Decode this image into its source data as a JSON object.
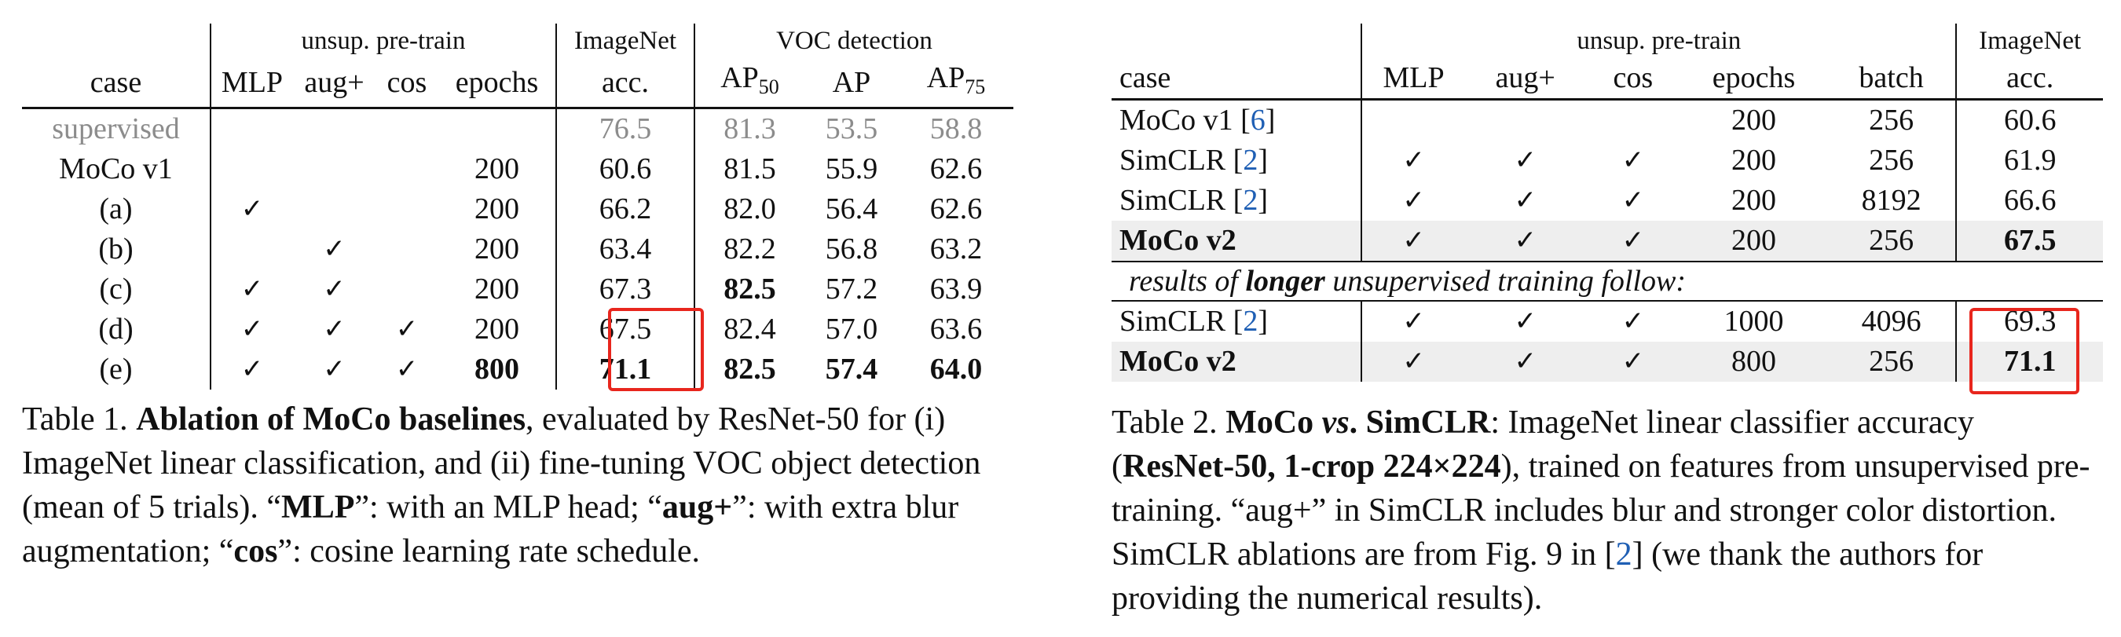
{
  "table1": {
    "header": {
      "group_pretrain": "unsup. pre-train",
      "group_imagenet": "ImageNet",
      "group_voc": "VOC detection",
      "case": "case",
      "mlp": "MLP",
      "aug": "aug+",
      "cos": "cos",
      "epochs": "epochs",
      "acc": "acc.",
      "ap50_main": "AP",
      "ap50_sub": "50",
      "ap": "AP",
      "ap75_main": "AP",
      "ap75_sub": "75"
    },
    "rows": [
      {
        "case": "supervised",
        "mlp": "",
        "aug": "",
        "cos": "",
        "epochs": "",
        "acc": "76.5",
        "ap50": "81.3",
        "ap": "53.5",
        "ap75": "58.8"
      },
      {
        "case": "MoCo v1",
        "mlp": "",
        "aug": "",
        "cos": "",
        "epochs": "200",
        "acc": "60.6",
        "ap50": "81.5",
        "ap": "55.9",
        "ap75": "62.6"
      },
      {
        "case": "(a)",
        "mlp": "✓",
        "aug": "",
        "cos": "",
        "epochs": "200",
        "acc": "66.2",
        "ap50": "82.0",
        "ap": "56.4",
        "ap75": "62.6"
      },
      {
        "case": "(b)",
        "mlp": "",
        "aug": "✓",
        "cos": "",
        "epochs": "200",
        "acc": "63.4",
        "ap50": "82.2",
        "ap": "56.8",
        "ap75": "63.2"
      },
      {
        "case": "(c)",
        "mlp": "✓",
        "aug": "✓",
        "cos": "",
        "epochs": "200",
        "acc": "67.3",
        "ap50": "82.5",
        "ap": "57.2",
        "ap75": "63.9"
      },
      {
        "case": "(d)",
        "mlp": "✓",
        "aug": "✓",
        "cos": "✓",
        "epochs": "200",
        "acc": "67.5",
        "ap50": "82.4",
        "ap": "57.0",
        "ap75": "63.6"
      },
      {
        "case": "(e)",
        "mlp": "✓",
        "aug": "✓",
        "cos": "✓",
        "epochs": "800",
        "acc": "71.1",
        "ap50": "82.5",
        "ap": "57.4",
        "ap75": "64.0"
      }
    ],
    "caption": {
      "label": "Table 1.",
      "title": "Ablation of MoCo baselines",
      "t1": ", evaluated by ResNet-50 for (i) ImageNet linear classification, and (ii) fine-tuning VOC object detection (mean of 5 trials). “",
      "k1": "MLP",
      "t2": "”: with an MLP head; “",
      "k2": "aug+",
      "t3": "”: with extra blur augmentation; “",
      "k3": "cos",
      "t4": "”: cosine learning rate schedule."
    }
  },
  "table2": {
    "header": {
      "group_pretrain": "unsup. pre-train",
      "group_imagenet": "ImageNet",
      "case": "case",
      "mlp": "MLP",
      "aug": "aug+",
      "cos": "cos",
      "epochs": "epochs",
      "batch": "batch",
      "acc": "acc."
    },
    "rows": [
      {
        "name": "MoCo v1",
        "ref": "6",
        "mlp": "",
        "aug": "",
        "cos": "",
        "epochs": "200",
        "batch": "256",
        "acc": "60.6"
      },
      {
        "name": "SimCLR",
        "ref": "2",
        "mlp": "✓",
        "aug": "✓",
        "cos": "✓",
        "epochs": "200",
        "batch": "256",
        "acc": "61.9"
      },
      {
        "name": "SimCLR",
        "ref": "2",
        "mlp": "✓",
        "aug": "✓",
        "cos": "✓",
        "epochs": "200",
        "batch": "8192",
        "acc": "66.6"
      },
      {
        "name": "MoCo v2",
        "ref": "",
        "mlp": "✓",
        "aug": "✓",
        "cos": "✓",
        "epochs": "200",
        "batch": "256",
        "acc": "67.5"
      }
    ],
    "note": {
      "pre": "results of ",
      "bold": "longer",
      "post": " unsupervised training follow:"
    },
    "rows_long": [
      {
        "name": "SimCLR",
        "ref": "2",
        "mlp": "✓",
        "aug": "✓",
        "cos": "✓",
        "epochs": "1000",
        "batch": "4096",
        "acc": "69.3"
      },
      {
        "name": "MoCo v2",
        "ref": "",
        "mlp": "✓",
        "aug": "✓",
        "cos": "✓",
        "epochs": "800",
        "batch": "256",
        "acc": "71.1"
      }
    ],
    "caption": {
      "label": "Table 2.",
      "title_a": "MoCo ",
      "title_vs": "vs",
      "title_b": ". SimCLR",
      "t1": ": ImageNet linear classifier accuracy (",
      "b1": "ResNet-50, 1-crop 224×224",
      "t2": "), trained on features from unsupervised pre-training. “aug+” in SimCLR includes blur and stronger color distortion.  SimCLR ablations are from Fig. 9 in [",
      "ref": "2",
      "t3": "] (we thank the authors for providing the numerical results)."
    }
  },
  "colors": {
    "highlight_box": "#e8261d",
    "shade": "#eeeeee",
    "link": "#1f5fb4",
    "supervised_text": "#8c8c8c"
  }
}
